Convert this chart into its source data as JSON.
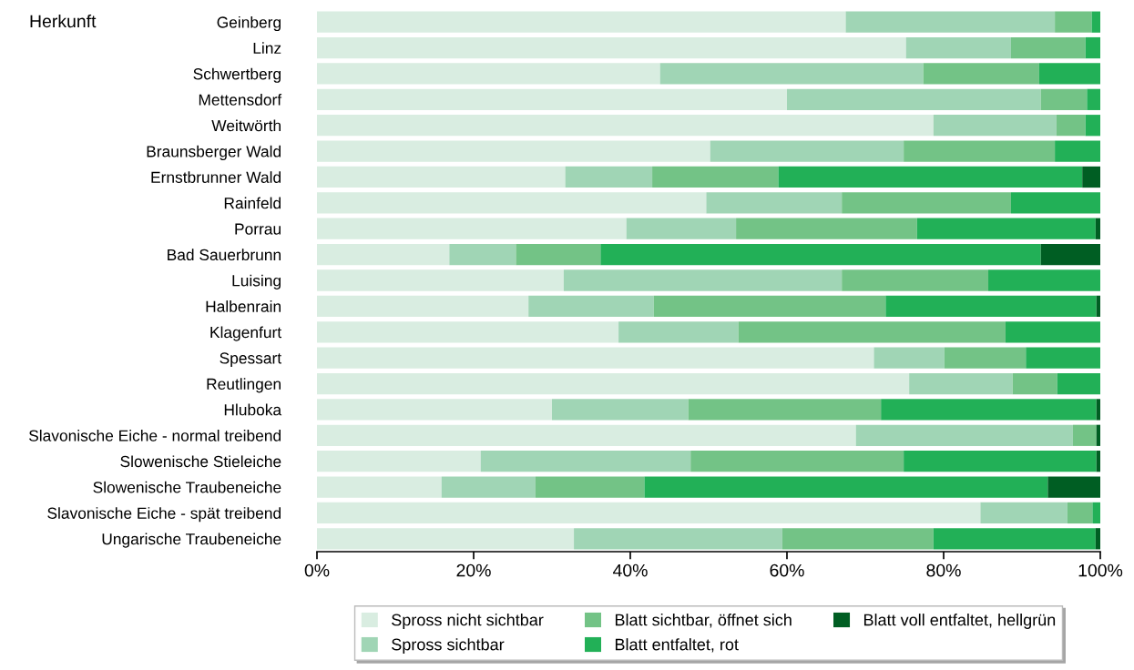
{
  "chart_data": {
    "type": "bar",
    "orientation": "horizontal",
    "stacked": true,
    "ylabel": "Herkunft",
    "categories": [
      "Geinberg",
      "Linz",
      "Schwertberg",
      "Mettensdorf",
      "Weitwörth",
      "Braunsberger Wald",
      "Ernstbrunner Wald",
      "Rainfeld",
      "Porrau",
      "Bad Sauerbrunn",
      "Luising",
      "Halbenrain",
      "Klagenfurt",
      "Spessart",
      "Reutlingen",
      "Hluboka",
      "Slavonische Eiche - normal treibend",
      "Slowenische Stieleiche",
      "Slowenische Traubeneiche",
      "Slavonische Eiche - spät treibend",
      "Ungarische Traubeneiche"
    ],
    "series": [
      {
        "name": "Spross nicht sichtbar",
        "color": "#d9ede1",
        "values": [
          67.5,
          75.2,
          43.8,
          60.0,
          78.7,
          50.2,
          31.7,
          49.7,
          39.5,
          16.9,
          31.5,
          27.0,
          38.5,
          71.1,
          75.6,
          30.0,
          68.8,
          20.9,
          15.9,
          84.7,
          32.8
        ]
      },
      {
        "name": "Spross sichtbar",
        "color": "#a0d5b5",
        "values": [
          26.7,
          13.4,
          33.6,
          32.4,
          15.7,
          24.7,
          11.1,
          17.3,
          14.0,
          8.5,
          35.5,
          16.0,
          15.3,
          9.0,
          13.2,
          17.4,
          27.7,
          26.8,
          12.0,
          11.1,
          26.6
        ]
      },
      {
        "name": "Blatt sichtbar, öffnet sich",
        "color": "#73c386",
        "values": [
          4.7,
          9.5,
          14.8,
          5.9,
          3.7,
          19.3,
          16.1,
          21.6,
          23.1,
          10.8,
          18.7,
          29.6,
          34.1,
          10.4,
          5.7,
          24.6,
          3.0,
          27.2,
          13.9,
          3.2,
          19.3
        ]
      },
      {
        "name": "Blatt entfaltet, rot",
        "color": "#22b057",
        "values": [
          1.1,
          1.9,
          7.8,
          1.7,
          1.9,
          5.8,
          38.8,
          11.4,
          22.8,
          56.2,
          14.3,
          26.9,
          12.1,
          9.5,
          5.5,
          27.5,
          0,
          24.6,
          51.5,
          1.0,
          20.7
        ]
      },
      {
        "name": "Blatt voll entfaltet, hellgrün",
        "color": "#005e23",
        "values": [
          0,
          0,
          0,
          0,
          0,
          0,
          2.3,
          0,
          0.6,
          7.6,
          0,
          0.5,
          0,
          0,
          0,
          0.5,
          0.5,
          0.5,
          6.7,
          0,
          0.6
        ]
      }
    ],
    "xlim": [
      0,
      100
    ],
    "xticks": [
      {
        "value": 0,
        "label": "0%"
      },
      {
        "value": 20,
        "label": "20%"
      },
      {
        "value": 40,
        "label": "40%"
      },
      {
        "value": 60,
        "label": "60%"
      },
      {
        "value": 80,
        "label": "80%"
      },
      {
        "value": 100,
        "label": "100%"
      }
    ],
    "grid": false,
    "legend": "bottom"
  }
}
